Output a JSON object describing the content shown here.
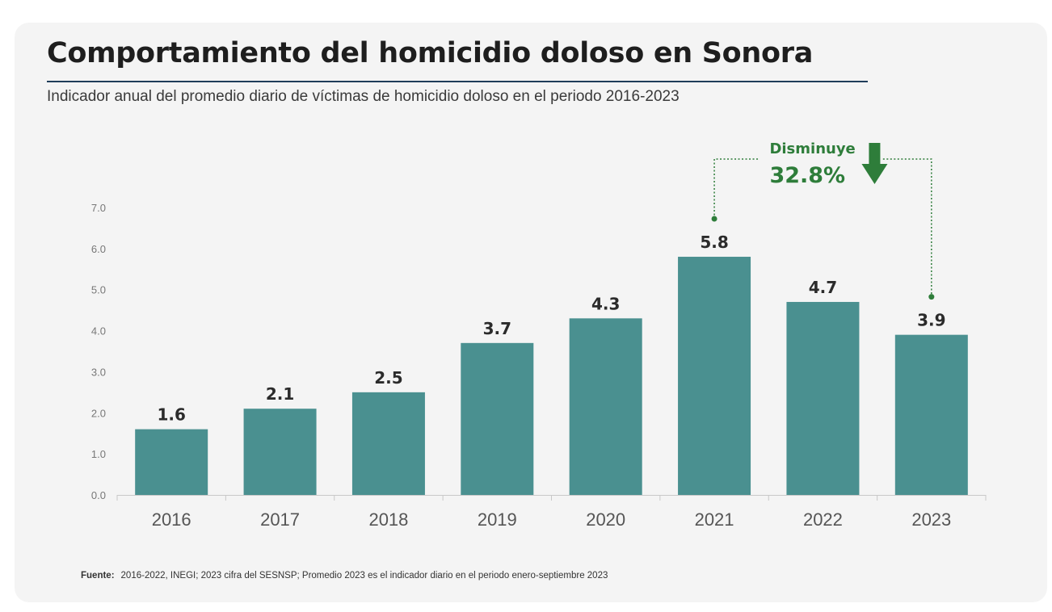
{
  "header": {
    "title": "Comportamiento del homicidio doloso en Sonora",
    "subtitle": "Indicador anual del promedio diario de víctimas de homicidio doloso en el periodo 2016-2023"
  },
  "chart_data": {
    "type": "bar",
    "categories": [
      "2016",
      "2017",
      "2018",
      "2019",
      "2020",
      "2021",
      "2022",
      "2023"
    ],
    "values": [
      1.6,
      2.1,
      2.5,
      3.7,
      4.3,
      5.8,
      4.7,
      3.9
    ],
    "value_labels": [
      "1.6",
      "2.1",
      "2.5",
      "3.7",
      "4.3",
      "5.8",
      "4.7",
      "3.9"
    ],
    "y_ticks": [
      "0.0",
      "1.0",
      "2.0",
      "3.0",
      "4.0",
      "5.0",
      "6.0",
      "7.0"
    ],
    "ylim": [
      0,
      7
    ],
    "grid": false,
    "bar_color": "#4a9090",
    "annotation": {
      "from": "2021",
      "to": "2023",
      "line1": "Disminuye",
      "line2": "32.8%",
      "color": "#2e7d3a"
    }
  },
  "footer": {
    "label": "Fuente:",
    "text": "2016-2022, INEGI; 2023 cifra del SESNSP; Promedio 2023 es el indicador diario en el periodo enero-septiembre 2023"
  }
}
